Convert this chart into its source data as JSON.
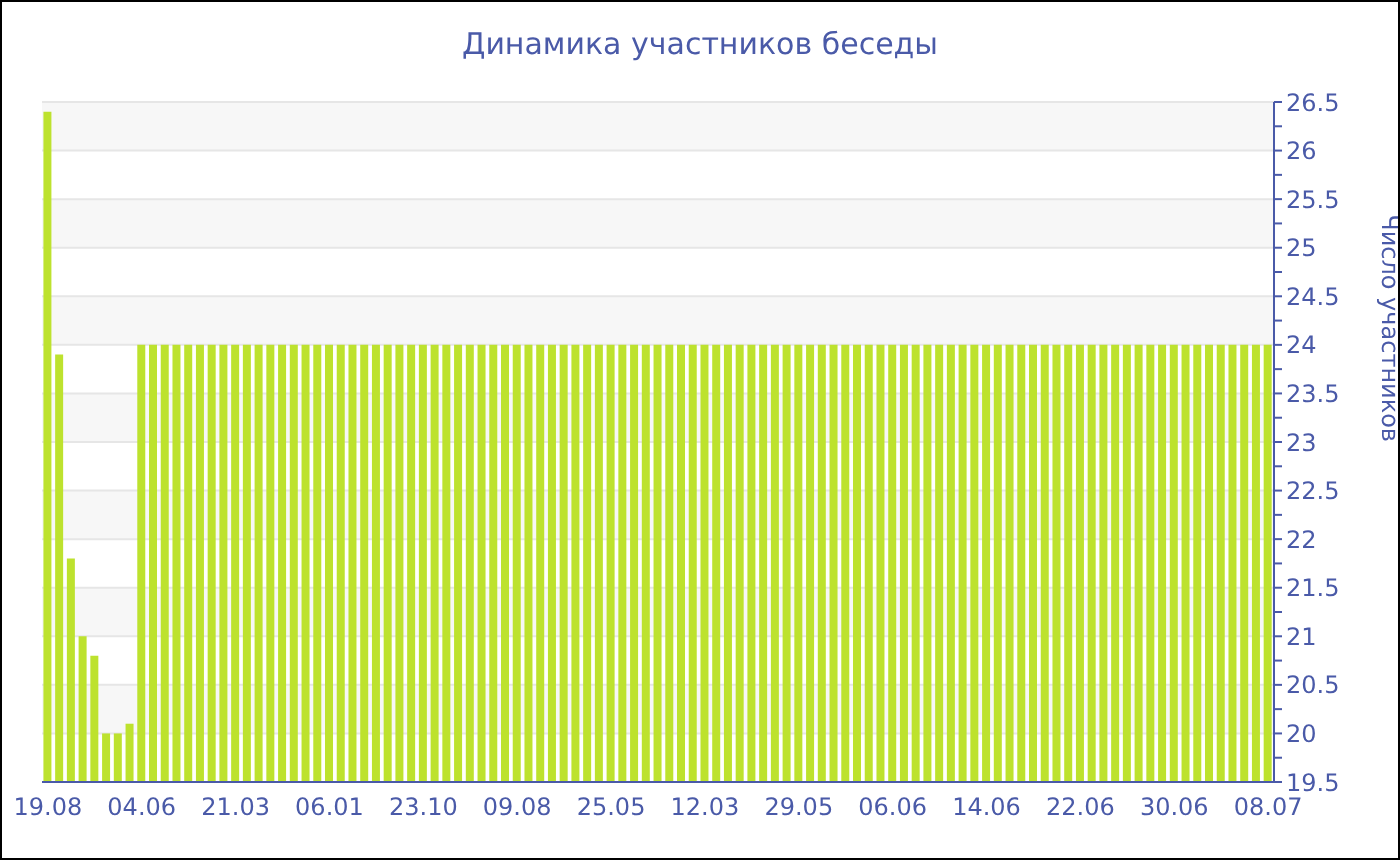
{
  "chart_data": {
    "type": "bar",
    "title": "Динамика участников беседы",
    "ylabel": "Число участников",
    "categories": [
      "19.08",
      null,
      null,
      null,
      null,
      null,
      null,
      null,
      "04.06",
      null,
      null,
      null,
      null,
      null,
      null,
      null,
      "21.03",
      null,
      null,
      null,
      null,
      null,
      null,
      null,
      "06.01",
      null,
      null,
      null,
      null,
      null,
      null,
      null,
      "23.10",
      null,
      null,
      null,
      null,
      null,
      null,
      null,
      "09.08",
      null,
      null,
      null,
      null,
      null,
      null,
      null,
      "25.05",
      null,
      null,
      null,
      null,
      null,
      null,
      null,
      "12.03",
      null,
      null,
      null,
      null,
      null,
      null,
      null,
      "29.05",
      null,
      null,
      null,
      null,
      null,
      null,
      null,
      "06.06",
      null,
      null,
      null,
      null,
      null,
      null,
      null,
      "14.06",
      null,
      null,
      null,
      null,
      null,
      null,
      null,
      "22.06",
      null,
      null,
      null,
      null,
      null,
      null,
      null,
      "30.06",
      null,
      null,
      null,
      null,
      null,
      null,
      null,
      "08.07"
    ],
    "values": [
      26.4,
      23.9,
      21.8,
      21.0,
      20.8,
      20.0,
      20.0,
      20.1,
      24,
      24,
      24,
      24,
      24,
      24,
      24,
      24,
      24,
      24,
      24,
      24,
      24,
      24,
      24,
      24,
      24,
      24,
      24,
      24,
      24,
      24,
      24,
      24,
      24,
      24,
      24,
      24,
      24,
      24,
      24,
      24,
      24,
      24,
      24,
      24,
      24,
      24,
      24,
      24,
      24,
      24,
      24,
      24,
      24,
      24,
      24,
      24,
      24,
      24,
      24,
      24,
      24,
      24,
      24,
      24,
      24,
      24,
      24,
      24,
      24,
      24,
      24,
      24,
      24,
      24,
      24,
      24,
      24,
      24,
      24,
      24,
      24,
      24,
      24,
      24,
      24,
      24,
      24,
      24,
      24,
      24,
      24,
      24,
      24,
      24,
      24,
      24,
      24,
      24,
      24,
      24,
      24,
      24,
      24,
      24,
      24
    ],
    "color": "#bde22e",
    "ylim": [
      19.5,
      26.5
    ],
    "yticks": [
      19.5,
      {
        "value": 19.75,
        "label": null
      },
      20,
      {
        "value": 20.25,
        "label": null
      },
      20.5,
      {
        "value": 20.75,
        "label": null
      },
      21,
      {
        "value": 21.25,
        "label": null
      },
      21.5,
      {
        "value": 21.75,
        "label": null
      },
      22,
      {
        "value": 22.25,
        "label": null
      },
      22.5,
      {
        "value": 22.75,
        "label": null
      },
      23,
      {
        "value": 23.25,
        "label": null
      },
      23.5,
      {
        "value": 23.75,
        "label": null
      },
      24,
      {
        "value": 24.25,
        "label": null
      },
      24.5,
      {
        "value": 24.75,
        "label": null
      },
      25,
      {
        "value": 25.25,
        "label": null
      },
      25.5,
      {
        "value": 25.75,
        "label": null
      },
      26,
      {
        "value": 26.25,
        "label": null
      },
      26.5
    ],
    "grid": "y",
    "legend": false
  }
}
